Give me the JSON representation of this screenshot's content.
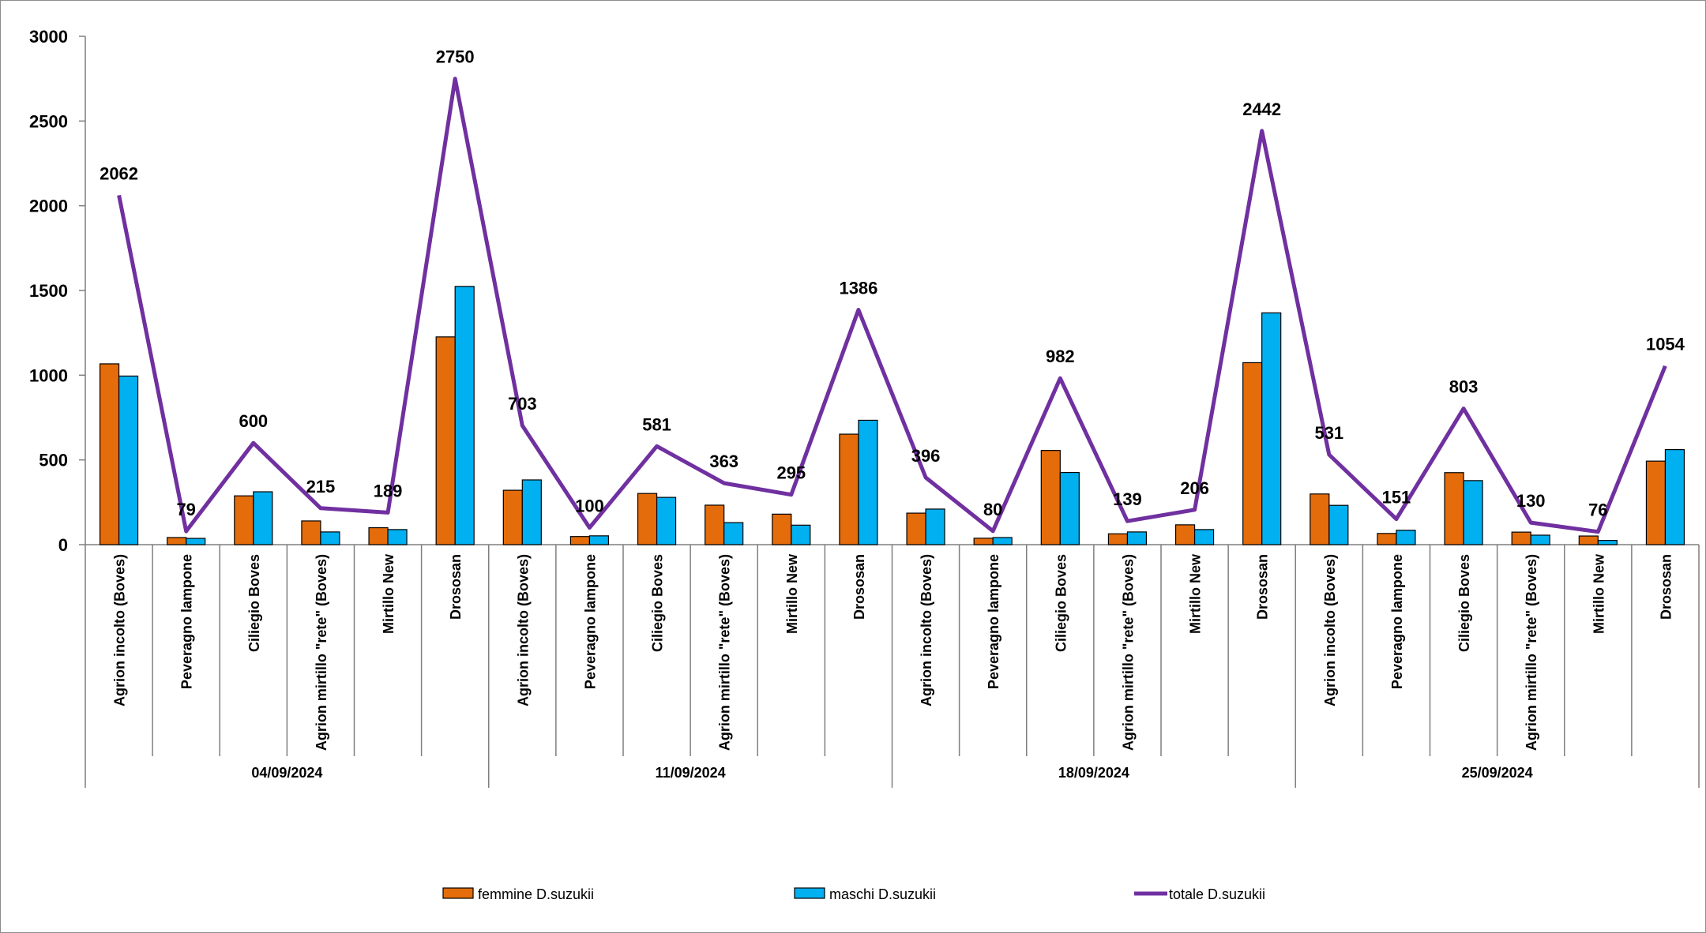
{
  "chart_data": {
    "type": "bar",
    "ylim": [
      0,
      3000
    ],
    "yticks": [
      0,
      500,
      1000,
      1500,
      2000,
      2500,
      3000
    ],
    "groups": [
      {
        "label": "04/09/2024",
        "categories": [
          "Agrion incolto (Boves)",
          "Peveragno lampone",
          "Ciliegio Boves",
          "Agrion mirtillo \"rete\" (Boves)",
          "Mirtillo New",
          "Drososan"
        ]
      },
      {
        "label": "11/09/2024",
        "categories": [
          "Agrion incolto (Boves)",
          "Peveragno lampone",
          "Ciliegio Boves",
          "Agrion mirtillo \"rete\" (Boves)",
          "Mirtillo New",
          "Drososan"
        ]
      },
      {
        "label": "18/09/2024",
        "categories": [
          "Agrion incolto (Boves)",
          "Peveragno lampone",
          "Ciliegio Boves",
          "Agrion mirtillo \"rete\" (Boves)",
          "Mirtillo New",
          "Drososan"
        ]
      },
      {
        "label": "25/09/2024",
        "categories": [
          "Agrion incolto (Boves)",
          "Peveragno lampone",
          "Ciliegio Boves",
          "Agrion mirtillo \"rete\" (Boves)",
          "Mirtillo New",
          "Drososan"
        ]
      }
    ],
    "series": [
      {
        "name": "femmine D.suzukii",
        "kind": "bar",
        "color": "#E46C0A",
        "values": [
          1067,
          42,
          288,
          140,
          100,
          1226,
          321,
          48,
          302,
          233,
          180,
          652,
          186,
          38,
          556,
          64,
          117,
          1074,
          299,
          66,
          425,
          74,
          51,
          493
        ]
      },
      {
        "name": "maschi D.suzukii",
        "kind": "bar",
        "color": "#00B0F0",
        "values": [
          995,
          37,
          312,
          75,
          89,
          1524,
          382,
          52,
          279,
          130,
          115,
          734,
          210,
          42,
          426,
          75,
          89,
          1368,
          232,
          85,
          378,
          56,
          25,
          561
        ]
      },
      {
        "name": "totale D.suzukii",
        "kind": "line",
        "color": "#7030A0",
        "values": [
          2062,
          79,
          600,
          215,
          189,
          2750,
          703,
          100,
          581,
          363,
          295,
          1386,
          396,
          80,
          982,
          139,
          206,
          2442,
          531,
          151,
          803,
          130,
          76,
          1054
        ]
      }
    ],
    "data_labels": [
      "2062",
      "79",
      "600",
      "215",
      "189",
      "2750",
      "703",
      "100",
      "581",
      "363",
      "295",
      "1386",
      "396",
      "80",
      "982",
      "139",
      "206",
      "2442",
      "531",
      "151",
      "803",
      "130",
      "76",
      "1054"
    ],
    "legend_position": "bottom"
  }
}
